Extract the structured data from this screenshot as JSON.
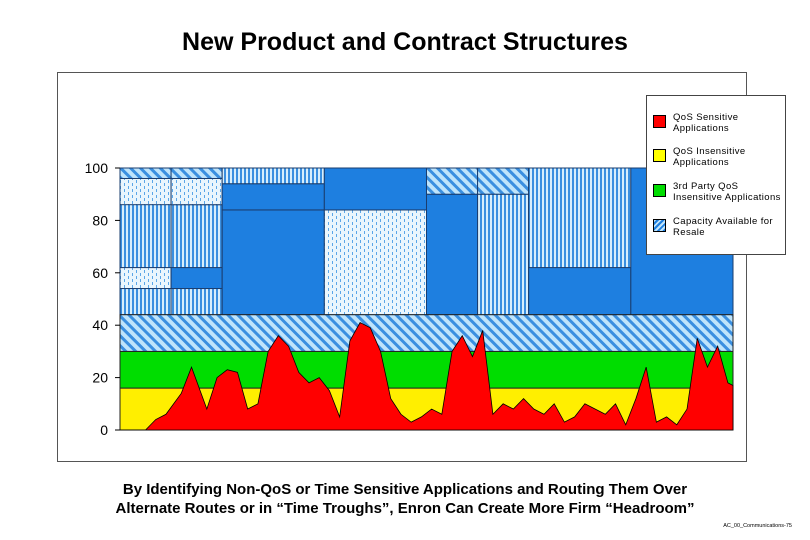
{
  "page": {
    "title": "New Product and Contract Structures",
    "caption_line1": "By Identifying Non-QoS or Time Sensitive Applications and Routing Them Over",
    "caption_line2": "Alternate Routes or in “Time Troughs”,  Enron Can Create More Firm “Headroom”",
    "footer": "AC_00_Communications-75"
  },
  "legend": [
    {
      "label": "QoS Sensitive Applications",
      "color": "#ff0000"
    },
    {
      "label": "QoS Insensitive Applications",
      "color": "#ffff00"
    },
    {
      "label": "3rd Party QoS Insensitive Applications",
      "color": "#00dd00"
    },
    {
      "label": "Capacity Available for Resale",
      "color": "#1e7fe0"
    }
  ],
  "colors": {
    "red": "#ff0000",
    "yellow": "#ffef00",
    "green": "#00dd00",
    "blue": "#1e7fe0",
    "light_blue": "#a8d8f8",
    "hatch_blue": "#3a8fe0"
  },
  "chart_data": {
    "type": "area",
    "ylim": [
      0,
      100
    ],
    "yticks": [
      0,
      20,
      40,
      60,
      80,
      100
    ],
    "xlim": [
      0,
      120
    ],
    "bands": [
      {
        "name": "QoS Insensitive Applications",
        "from": 0,
        "to": 16,
        "color": "#ffef00",
        "pattern": "solid"
      },
      {
        "name": "3rd Party QoS Insensitive Applications",
        "from": 16,
        "to": 30,
        "color": "#00dd00",
        "pattern": "solid"
      },
      {
        "name": "Capacity Available for Resale",
        "from": 30,
        "to": 44,
        "color": "#1e7fe0",
        "pattern": "diag"
      }
    ],
    "qos_sensitive_series": {
      "x": [
        0,
        3,
        5,
        7,
        9,
        12,
        14,
        17,
        19,
        21,
        23,
        25,
        27,
        29,
        31,
        33,
        35,
        37,
        39,
        41,
        43,
        45,
        47,
        49,
        51,
        53,
        55,
        57,
        59,
        61,
        63,
        65,
        67,
        69,
        71,
        73,
        75,
        77,
        79,
        81,
        83,
        85,
        87,
        89,
        91,
        93,
        95,
        97,
        99,
        101,
        103,
        105,
        107,
        109,
        111,
        113,
        115,
        117,
        119,
        120
      ],
      "y": [
        0,
        0,
        0,
        4,
        6,
        14,
        24,
        8,
        20,
        23,
        22,
        8,
        10,
        30,
        36,
        32,
        22,
        18,
        20,
        15,
        5,
        34,
        41,
        39,
        30,
        12,
        6,
        3,
        5,
        8,
        6,
        30,
        36,
        28,
        38,
        6,
        10,
        8,
        12,
        8,
        6,
        10,
        3,
        5,
        10,
        8,
        6,
        10,
        2,
        12,
        24,
        3,
        5,
        2,
        8,
        35,
        24,
        32,
        18,
        17
      ]
    },
    "blocks": [
      {
        "x0": 0,
        "x1": 10,
        "y0": 44,
        "y1": 54,
        "style": "vert"
      },
      {
        "x0": 0,
        "x1": 10,
        "y0": 54,
        "y1": 62,
        "style": "dots"
      },
      {
        "x0": 0,
        "x1": 10,
        "y0": 62,
        "y1": 100,
        "style": "vert"
      },
      {
        "x0": 0,
        "x1": 10,
        "y0": 86,
        "y1": 96,
        "style": "dots"
      },
      {
        "x0": 0,
        "x1": 10,
        "y0": 96,
        "y1": 100,
        "style": "diag"
      },
      {
        "x0": 10,
        "x1": 20,
        "y0": 44,
        "y1": 54,
        "style": "vert"
      },
      {
        "x0": 10,
        "x1": 20,
        "y0": 54,
        "y1": 62,
        "style": "solid"
      },
      {
        "x0": 10,
        "x1": 20,
        "y0": 62,
        "y1": 86,
        "style": "vert"
      },
      {
        "x0": 10,
        "x1": 20,
        "y0": 86,
        "y1": 96,
        "style": "dots"
      },
      {
        "x0": 10,
        "x1": 20,
        "y0": 96,
        "y1": 100,
        "style": "diag"
      },
      {
        "x0": 20,
        "x1": 40,
        "y0": 44,
        "y1": 84,
        "style": "solid"
      },
      {
        "x0": 20,
        "x1": 40,
        "y0": 84,
        "y1": 94,
        "style": "solid"
      },
      {
        "x0": 20,
        "x1": 40,
        "y0": 94,
        "y1": 100,
        "style": "vert"
      },
      {
        "x0": 40,
        "x1": 60,
        "y0": 44,
        "y1": 84,
        "style": "dots"
      },
      {
        "x0": 40,
        "x1": 60,
        "y0": 84,
        "y1": 100,
        "style": "solid"
      },
      {
        "x0": 60,
        "x1": 70,
        "y0": 44,
        "y1": 90,
        "style": "solid"
      },
      {
        "x0": 60,
        "x1": 70,
        "y0": 90,
        "y1": 100,
        "style": "diag"
      },
      {
        "x0": 70,
        "x1": 80,
        "y0": 44,
        "y1": 90,
        "style": "vert"
      },
      {
        "x0": 70,
        "x1": 80,
        "y0": 90,
        "y1": 100,
        "style": "diag"
      },
      {
        "x0": 80,
        "x1": 100,
        "y0": 44,
        "y1": 62,
        "style": "solid"
      },
      {
        "x0": 80,
        "x1": 100,
        "y0": 62,
        "y1": 100,
        "style": "vert"
      },
      {
        "x0": 100,
        "x1": 120,
        "y0": 44,
        "y1": 100,
        "style": "solid"
      }
    ]
  }
}
